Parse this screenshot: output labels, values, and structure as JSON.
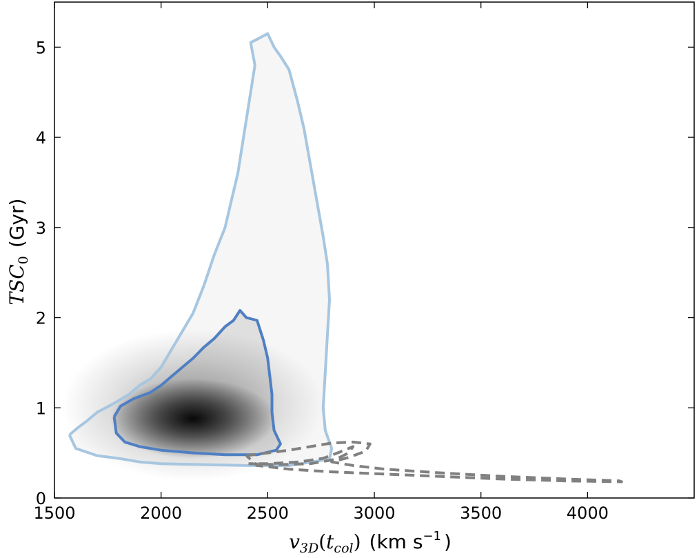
{
  "chart_data": {
    "type": "heatmap",
    "title": "",
    "xlabel": {
      "symbol": "v",
      "sub": "3D",
      "arg_open": "(",
      "arg_symbol": "t",
      "arg_sub": "col",
      "arg_close": ")",
      "unit_pre": "(km s",
      "unit_exp": "−1",
      "unit_post": ")"
    },
    "ylabel": {
      "symbol": "TSC",
      "sub": "0",
      "unit": "(Gyr)"
    },
    "xlim": [
      1500,
      4500
    ],
    "ylim": [
      0,
      5.5
    ],
    "x_ticks": [
      "1500",
      "2000",
      "2500",
      "3000",
      "3500",
      "4000"
    ],
    "y_ticks": [
      "0",
      "1",
      "2",
      "3",
      "4",
      "5"
    ],
    "grid": false,
    "density_peak": {
      "x": 2150,
      "y": 0.88
    },
    "colors": {
      "outer_contour": "#a7c6e0",
      "inner_contour": "#4f7fc2",
      "dashed_contour": "#808080",
      "density": "#000000"
    },
    "series": [
      {
        "style": "solid-light-blue",
        "points": [
          [
            1570,
            0.7
          ],
          [
            1610,
            0.78
          ],
          [
            1650,
            0.85
          ],
          [
            1700,
            0.95
          ],
          [
            1780,
            1.05
          ],
          [
            1850,
            1.15
          ],
          [
            1900,
            1.25
          ],
          [
            1950,
            1.32
          ],
          [
            2000,
            1.45
          ],
          [
            2050,
            1.65
          ],
          [
            2100,
            1.85
          ],
          [
            2150,
            2.05
          ],
          [
            2200,
            2.35
          ],
          [
            2250,
            2.7
          ],
          [
            2300,
            3.0
          ],
          [
            2330,
            3.3
          ],
          [
            2360,
            3.6
          ],
          [
            2380,
            3.9
          ],
          [
            2400,
            4.2
          ],
          [
            2420,
            4.5
          ],
          [
            2440,
            4.8
          ],
          [
            2420,
            5.05
          ],
          [
            2460,
            5.1
          ],
          [
            2500,
            5.15
          ],
          [
            2530,
            5.0
          ],
          [
            2560,
            4.9
          ],
          [
            2600,
            4.75
          ],
          [
            2640,
            4.4
          ],
          [
            2670,
            4.1
          ],
          [
            2700,
            3.7
          ],
          [
            2730,
            3.3
          ],
          [
            2760,
            2.9
          ],
          [
            2780,
            2.6
          ],
          [
            2790,
            2.2
          ],
          [
            2780,
            1.8
          ],
          [
            2770,
            1.4
          ],
          [
            2760,
            1.0
          ],
          [
            2770,
            0.75
          ],
          [
            2800,
            0.55
          ],
          [
            2790,
            0.43
          ],
          [
            2600,
            0.36
          ],
          [
            2400,
            0.36
          ],
          [
            2200,
            0.37
          ],
          [
            2000,
            0.38
          ],
          [
            1900,
            0.4
          ],
          [
            1800,
            0.44
          ],
          [
            1700,
            0.47
          ],
          [
            1600,
            0.55
          ],
          [
            1570,
            0.7
          ]
        ]
      },
      {
        "style": "solid-dark-blue",
        "points": [
          [
            1780,
            0.9
          ],
          [
            1810,
            1.02
          ],
          [
            1870,
            1.1
          ],
          [
            1950,
            1.17
          ],
          [
            2000,
            1.25
          ],
          [
            2050,
            1.35
          ],
          [
            2100,
            1.45
          ],
          [
            2150,
            1.55
          ],
          [
            2200,
            1.67
          ],
          [
            2250,
            1.77
          ],
          [
            2300,
            1.9
          ],
          [
            2340,
            1.97
          ],
          [
            2370,
            2.08
          ],
          [
            2400,
            2.0
          ],
          [
            2450,
            1.97
          ],
          [
            2480,
            1.75
          ],
          [
            2500,
            1.55
          ],
          [
            2510,
            1.35
          ],
          [
            2520,
            1.15
          ],
          [
            2520,
            0.95
          ],
          [
            2530,
            0.75
          ],
          [
            2560,
            0.6
          ],
          [
            2540,
            0.53
          ],
          [
            2450,
            0.48
          ],
          [
            2300,
            0.48
          ],
          [
            2150,
            0.5
          ],
          [
            2000,
            0.53
          ],
          [
            1900,
            0.57
          ],
          [
            1830,
            0.62
          ],
          [
            1790,
            0.72
          ],
          [
            1780,
            0.9
          ]
        ]
      },
      {
        "style": "dashed-gray",
        "points": [
          [
            2400,
            0.47
          ],
          [
            2500,
            0.5
          ],
          [
            2600,
            0.53
          ],
          [
            2700,
            0.57
          ],
          [
            2800,
            0.61
          ],
          [
            2900,
            0.62
          ],
          [
            2980,
            0.6
          ],
          [
            2960,
            0.52
          ],
          [
            2880,
            0.45
          ],
          [
            2800,
            0.4
          ],
          [
            2900,
            0.36
          ],
          [
            3050,
            0.32
          ],
          [
            3300,
            0.28
          ],
          [
            3600,
            0.24
          ],
          [
            3900,
            0.21
          ],
          [
            4150,
            0.19
          ],
          [
            4160,
            0.18
          ],
          [
            3900,
            0.19
          ],
          [
            3600,
            0.21
          ],
          [
            3300,
            0.24
          ],
          [
            3000,
            0.27
          ],
          [
            2800,
            0.29
          ],
          [
            2600,
            0.32
          ],
          [
            2450,
            0.36
          ],
          [
            2400,
            0.47
          ]
        ]
      },
      {
        "style": "dashed-gray",
        "points": [
          [
            2410,
            0.38
          ],
          [
            2550,
            0.37
          ],
          [
            2700,
            0.38
          ],
          [
            2820,
            0.43
          ],
          [
            2880,
            0.5
          ],
          [
            2900,
            0.57
          ],
          [
            2850,
            0.52
          ],
          [
            2760,
            0.44
          ],
          [
            2650,
            0.4
          ],
          [
            2500,
            0.38
          ],
          [
            2410,
            0.38
          ]
        ]
      }
    ]
  }
}
